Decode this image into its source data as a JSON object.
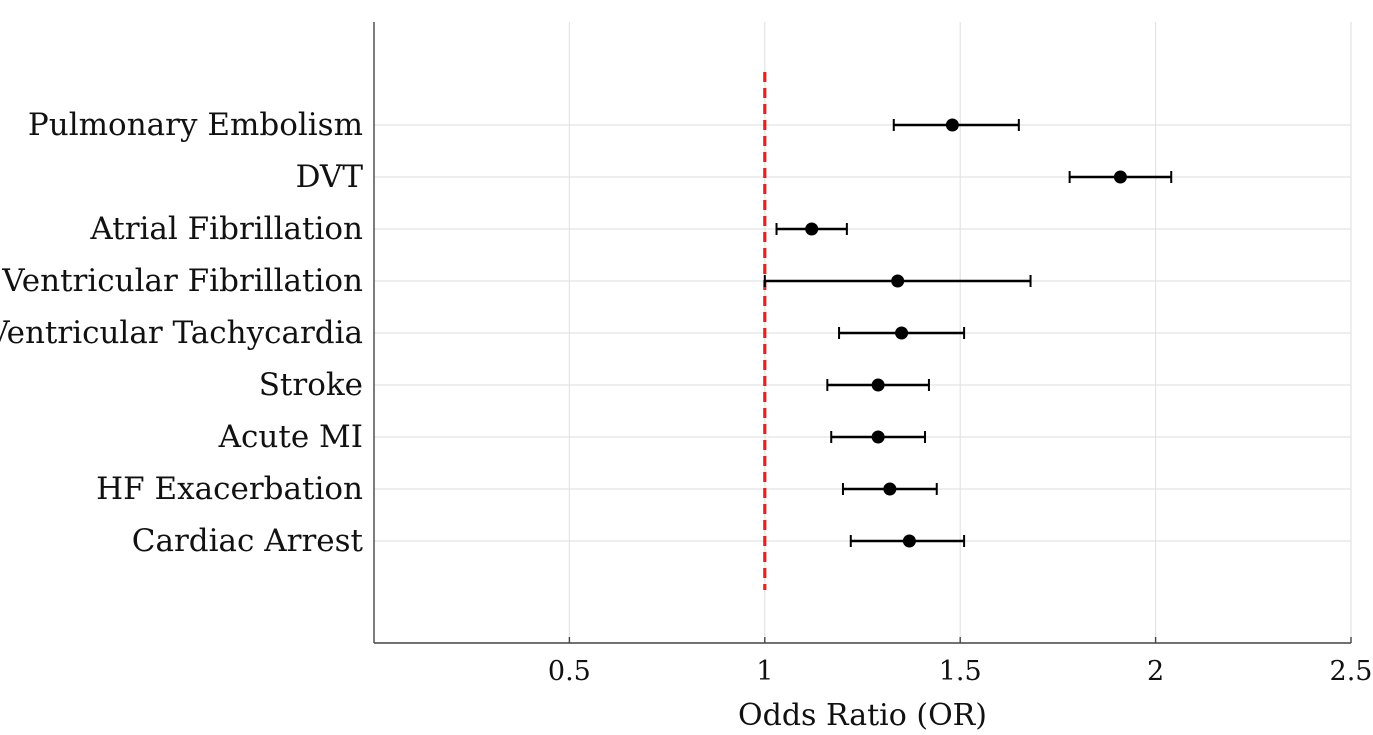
{
  "chart_data": {
    "type": "forest",
    "xlabel": "Odds Ratio (OR)",
    "xlim": [
      0,
      2.5
    ],
    "xticks": [
      0.5,
      1,
      1.5,
      2,
      2.5
    ],
    "xtick_labels": [
      "0.5",
      "1",
      "1.5",
      "2",
      "2.5"
    ],
    "reference_line": {
      "x": 1,
      "style": "dashed",
      "color": "#e8211d"
    },
    "grid": true,
    "point_color": "#000000",
    "categories": [
      "Pulmonary Embolism",
      "DVT",
      "Atrial Fibrillation",
      "Ventricular Fibrillation",
      "Ventricular Tachycardia",
      "Stroke",
      "Acute MI",
      "HF Exacerbation",
      "Cardiac Arrest"
    ],
    "estimates": [
      1.48,
      1.91,
      1.12,
      1.34,
      1.35,
      1.29,
      1.29,
      1.32,
      1.37
    ],
    "ci_lower": [
      1.33,
      1.78,
      1.03,
      1.0,
      1.19,
      1.16,
      1.17,
      1.2,
      1.22
    ],
    "ci_upper": [
      1.65,
      2.04,
      1.21,
      1.68,
      1.51,
      1.42,
      1.41,
      1.44,
      1.51
    ]
  }
}
